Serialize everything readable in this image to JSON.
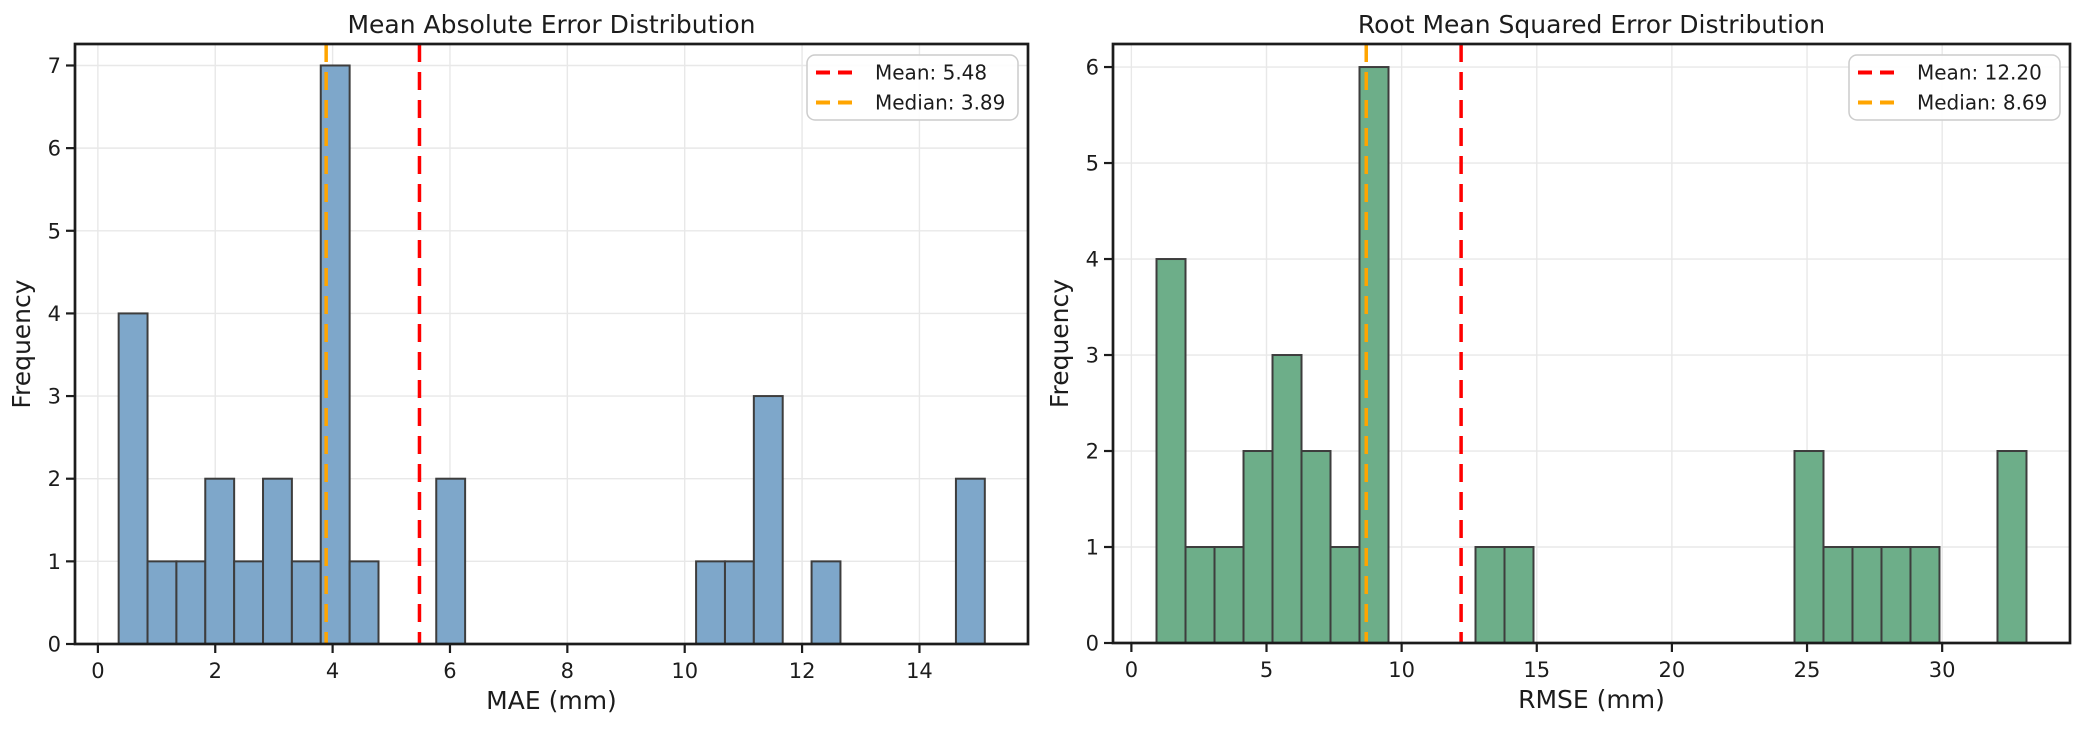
{
  "page": {
    "background": "#ffffff",
    "description": "Two histograms of prediction error metrics"
  },
  "chart_data": [
    {
      "type": "bar",
      "subtype": "histogram",
      "title": "Mean Absolute Error Distribution",
      "xlabel": "MAE (mm)",
      "ylabel": "Frequency",
      "bin_start": 0.354,
      "bin_width": 0.492,
      "counts": [
        4,
        1,
        1,
        2,
        1,
        2,
        1,
        7,
        1,
        0,
        0,
        2,
        0,
        0,
        0,
        0,
        0,
        0,
        0,
        0,
        1,
        1,
        3,
        0,
        1,
        0,
        0,
        0,
        0,
        2
      ],
      "total_samples": 30,
      "xlim": [
        -0.39,
        15.85
      ],
      "ylim": [
        0,
        7.26
      ],
      "xticks": [
        0,
        2,
        4,
        6,
        8,
        10,
        12,
        14
      ],
      "xtick_labels": [
        "0",
        "2",
        "4",
        "6",
        "8",
        "10",
        "12",
        "14"
      ],
      "yticks": [
        0,
        1,
        2,
        3,
        4,
        5,
        6,
        7
      ],
      "ytick_labels": [
        "0",
        "1",
        "2",
        "3",
        "4",
        "5",
        "6",
        "7"
      ],
      "grid": true,
      "bar_fill": "#7ea7ca",
      "bar_edge": "#3d3d3d",
      "mean": {
        "value": 5.48,
        "color": "#ff0000",
        "style": "dashed"
      },
      "median": {
        "value": 3.89,
        "color": "#ffa500",
        "style": "dashed"
      },
      "legend": {
        "position": "upper right",
        "entries": [
          {
            "label": "Mean: 5.48",
            "color": "#ff0000"
          },
          {
            "label": "Median: 3.89",
            "color": "#ffa500"
          }
        ]
      }
    },
    {
      "type": "bar",
      "subtype": "histogram",
      "title": "Root Mean Squared Error Distribution",
      "xlabel": "RMSE (mm)",
      "ylabel": "Frequency",
      "bin_start": 0.93,
      "bin_width": 1.073,
      "counts": [
        4,
        1,
        1,
        2,
        3,
        2,
        1,
        6,
        0,
        0,
        0,
        1,
        1,
        0,
        0,
        0,
        0,
        0,
        0,
        0,
        0,
        0,
        2,
        1,
        1,
        1,
        1,
        0,
        0,
        2
      ],
      "total_samples": 30,
      "xlim": [
        -0.68,
        34.73
      ],
      "ylim": [
        0,
        6.24
      ],
      "xticks": [
        0,
        5,
        10,
        15,
        20,
        25,
        30
      ],
      "xtick_labels": [
        "0",
        "5",
        "10",
        "15",
        "20",
        "25",
        "30"
      ],
      "yticks": [
        0,
        1,
        2,
        3,
        4,
        5,
        6
      ],
      "ytick_labels": [
        "0",
        "1",
        "2",
        "3",
        "4",
        "5",
        "6"
      ],
      "grid": true,
      "bar_fill": "#6dae89",
      "bar_edge": "#3d3d3d",
      "mean": {
        "value": 12.2,
        "color": "#ff0000",
        "style": "dashed"
      },
      "median": {
        "value": 8.69,
        "color": "#ffa500",
        "style": "dashed"
      },
      "legend": {
        "position": "upper right",
        "entries": [
          {
            "label": "Mean: 12.20",
            "color": "#ff0000"
          },
          {
            "label": "Median: 8.69",
            "color": "#ffa500"
          }
        ]
      }
    }
  ]
}
